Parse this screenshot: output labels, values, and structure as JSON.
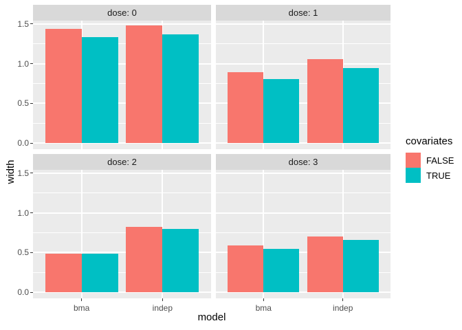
{
  "chart_data": {
    "type": "bar",
    "title": "",
    "xlabel": "model",
    "ylabel": "width",
    "categories": [
      "bma",
      "indep"
    ],
    "facets": [
      {
        "label": "dose: 0",
        "series": [
          {
            "name": "FALSE",
            "values": [
              1.44,
              1.48
            ]
          },
          {
            "name": "TRUE",
            "values": [
              1.33,
              1.37
            ]
          }
        ]
      },
      {
        "label": "dose: 1",
        "series": [
          {
            "name": "FALSE",
            "values": [
              0.89,
              1.06
            ]
          },
          {
            "name": "TRUE",
            "values": [
              0.81,
              0.94
            ]
          }
        ]
      },
      {
        "label": "dose: 2",
        "series": [
          {
            "name": "FALSE",
            "values": [
              0.49,
              0.82
            ]
          },
          {
            "name": "TRUE",
            "values": [
              0.49,
              0.8
            ]
          }
        ]
      },
      {
        "label": "dose: 3",
        "series": [
          {
            "name": "FALSE",
            "values": [
              0.59,
              0.7
            ]
          },
          {
            "name": "TRUE",
            "values": [
              0.55,
              0.66
            ]
          }
        ]
      }
    ],
    "yticks": [
      0.0,
      0.5,
      1.0,
      1.5
    ],
    "ytick_labels": [
      "0.0",
      "0.5",
      "1.0",
      "1.5"
    ],
    "yticks_minor": [
      0.25,
      0.75,
      1.25
    ],
    "ylim": [
      -0.075,
      1.54
    ],
    "grid": true,
    "legend": {
      "title": "covariates",
      "position": "right",
      "entries": [
        {
          "label": "FALSE",
          "color": "#F8766D"
        },
        {
          "label": "TRUE",
          "color": "#00BFC4"
        }
      ]
    },
    "colors": {
      "panel_bg": "#EBEBEB",
      "strip_bg": "#D9D9D9",
      "grid": "#FFFFFF",
      "tick_text": "#4D4D4D",
      "tick_mark": "#333333",
      "text": "#000000",
      "figure_bg": "#FFFFFF"
    }
  }
}
